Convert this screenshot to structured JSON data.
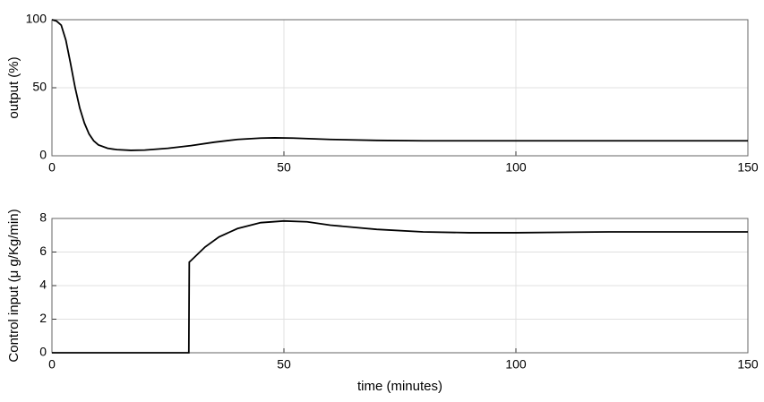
{
  "chart_data": [
    {
      "type": "line",
      "ylabel": "output (%)",
      "x": [
        0,
        1,
        2,
        3,
        4,
        5,
        6,
        7,
        8,
        9,
        10,
        12,
        14,
        17,
        20,
        25,
        30,
        35,
        40,
        45,
        48,
        52,
        60,
        70,
        80,
        90,
        100,
        120,
        150
      ],
      "values": [
        100,
        99,
        96,
        85,
        68,
        50,
        35,
        24,
        16,
        11,
        8,
        5.5,
        4.5,
        4,
        4.2,
        5.5,
        7.5,
        10,
        12,
        13,
        13.2,
        13,
        12,
        11.3,
        11,
        11,
        11,
        11,
        11
      ],
      "color": "#000000",
      "xlim": [
        0,
        150
      ],
      "ylim": [
        0,
        100
      ],
      "xticks": [
        0,
        50,
        100,
        150
      ],
      "yticks": [
        0,
        50,
        100
      ],
      "grid": true
    },
    {
      "type": "line",
      "ylabel": "Control input (μ g/Kg/min)",
      "xlabel": "time (minutes)",
      "x": [
        0,
        10,
        20,
        29.5,
        29.6,
        30,
        33,
        36,
        40,
        45,
        50,
        55,
        60,
        70,
        80,
        90,
        100,
        120,
        150
      ],
      "values": [
        0,
        0,
        0,
        0,
        5.4,
        5.5,
        6.3,
        6.9,
        7.4,
        7.75,
        7.85,
        7.8,
        7.6,
        7.35,
        7.2,
        7.15,
        7.15,
        7.2,
        7.2
      ],
      "color": "#000000",
      "xlim": [
        0,
        150
      ],
      "ylim": [
        0,
        8
      ],
      "xticks": [
        0,
        50,
        100,
        150
      ],
      "yticks": [
        0,
        2,
        4,
        6,
        8
      ],
      "grid": true
    }
  ]
}
